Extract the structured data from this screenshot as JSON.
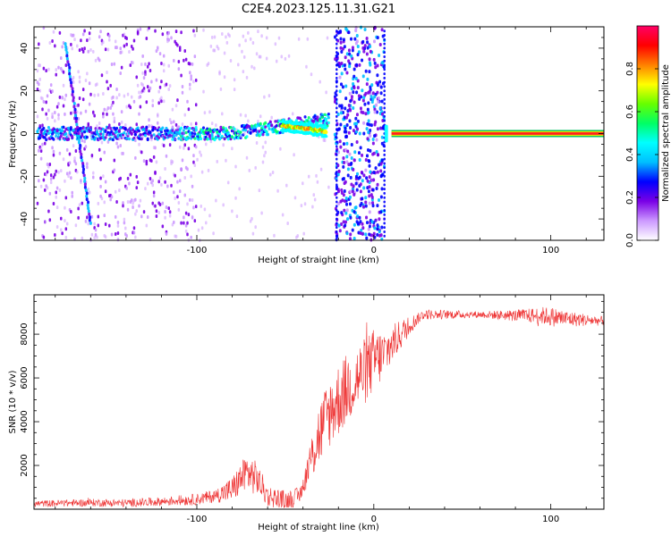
{
  "title": "C2E4.2023.125.11.31.G21",
  "chart_data": [
    {
      "type": "heatmap",
      "xlabel": "Height of straight line (km)",
      "ylabel": "Frequency (Hz)",
      "xlim": [
        -192,
        130
      ],
      "ylim": [
        -50,
        50
      ],
      "xticks": [
        -100,
        0,
        100
      ],
      "yticks": [
        -40,
        -20,
        0,
        20,
        40
      ],
      "colorbar": {
        "label": "Normalized spectral amplitude",
        "range": [
          0,
          1
        ],
        "ticks": [
          0.0,
          0.2,
          0.4,
          0.6,
          0.8
        ],
        "colors": [
          "#ffffff",
          "#cc99ff",
          "#7a00e6",
          "#0000ff",
          "#00bfff",
          "#00ffff",
          "#00ff66",
          "#66ff00",
          "#ffff00",
          "#ff8000",
          "#ff0000",
          "#ff0066"
        ]
      },
      "features": [
        {
          "kind": "carrier_band",
          "x_range": [
            -190,
            -25
          ],
          "freq_center": 0,
          "amplitude": 0.35
        },
        {
          "kind": "drifting_line",
          "x_range": [
            -174,
            -160
          ],
          "freq_range": [
            42,
            -42
          ],
          "amplitude": 0.3
        },
        {
          "kind": "strong_carrier",
          "x_range": [
            -52,
            -27
          ],
          "freq_center": 4,
          "amplitude": 0.85
        },
        {
          "kind": "broadband_burst",
          "x_range": [
            -22,
            6
          ],
          "freq_range": [
            -50,
            50
          ],
          "amplitude": 0.3
        },
        {
          "kind": "clean_carrier",
          "x_range": [
            10,
            130
          ],
          "freq_center": 0,
          "amplitude": 0.95
        }
      ]
    },
    {
      "type": "line",
      "xlabel": "Height of straight line (km)",
      "ylabel": "SNR (10 * v/v)",
      "xlim": [
        -192,
        130
      ],
      "ylim": [
        0,
        9800
      ],
      "xticks": [
        -100,
        0,
        100
      ],
      "yticks": [
        2000,
        4000,
        6000,
        8000
      ],
      "color": "#ee3333",
      "profile": [
        [
          -192,
          250
        ],
        [
          -160,
          300
        ],
        [
          -140,
          280
        ],
        [
          -120,
          350
        ],
        [
          -100,
          450
        ],
        [
          -90,
          600
        ],
        [
          -80,
          900
        ],
        [
          -72,
          1700
        ],
        [
          -66,
          1400
        ],
        [
          -60,
          600
        ],
        [
          -50,
          400
        ],
        [
          -42,
          600
        ],
        [
          -38,
          1600
        ],
        [
          -32,
          3200
        ],
        [
          -26,
          4300
        ],
        [
          -20,
          5000
        ],
        [
          -12,
          5800
        ],
        [
          -5,
          6300
        ],
        [
          0,
          6800
        ],
        [
          5,
          7000
        ],
        [
          12,
          7700
        ],
        [
          20,
          8400
        ],
        [
          28,
          8900
        ],
        [
          40,
          8900
        ],
        [
          60,
          8900
        ],
        [
          80,
          8850
        ],
        [
          95,
          8850
        ],
        [
          110,
          8700
        ],
        [
          130,
          8600
        ]
      ],
      "noise": [
        [
          -192,
          150
        ],
        [
          -120,
          200
        ],
        [
          -90,
          300
        ],
        [
          -70,
          900
        ],
        [
          -60,
          500
        ],
        [
          -40,
          400
        ],
        [
          -32,
          1500
        ],
        [
          -20,
          1700
        ],
        [
          0,
          1500
        ],
        [
          10,
          900
        ],
        [
          25,
          250
        ],
        [
          60,
          150
        ],
        [
          85,
          300
        ],
        [
          100,
          450
        ],
        [
          130,
          200
        ]
      ]
    }
  ]
}
